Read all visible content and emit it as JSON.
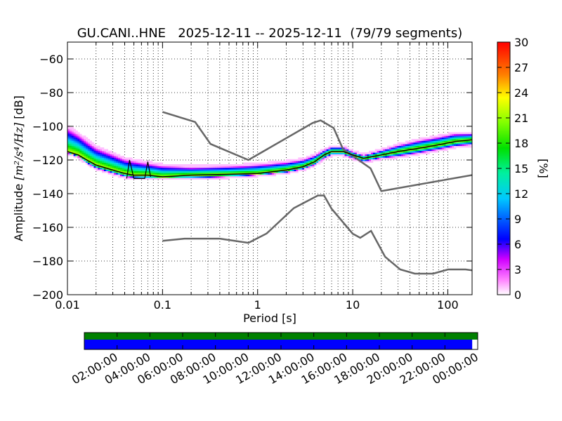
{
  "title": "GU.CANI..HNE   2025-12-11 -- 2025-12-11  (79/79 segments)",
  "chart_data": {
    "type": "heatmap",
    "title": "GU.CANI..HNE   2025-12-11 -- 2025-12-11  (79/79 segments)",
    "xlabel": "Period [s]",
    "ylabel_prefix": "Amplitude ",
    "ylabel_units": "[m²/s⁴/Hz]",
    "ylabel_suffix": " [dB]",
    "x_scale": "log",
    "xlim": [
      0.01,
      180
    ],
    "ylim": [
      -200,
      -50
    ],
    "grid": true,
    "x_ticks": [
      {
        "v": 0.01,
        "label": "0.01"
      },
      {
        "v": 0.1,
        "label": "0.1"
      },
      {
        "v": 1,
        "label": "1"
      },
      {
        "v": 10,
        "label": "10"
      },
      {
        "v": 100,
        "label": "100"
      }
    ],
    "y_ticks": [
      {
        "v": -60,
        "label": "−60"
      },
      {
        "v": -80,
        "label": "−80"
      },
      {
        "v": -100,
        "label": "−100"
      },
      {
        "v": -120,
        "label": "−120"
      },
      {
        "v": -140,
        "label": "−140"
      },
      {
        "v": -160,
        "label": "−160"
      },
      {
        "v": -180,
        "label": "−180"
      },
      {
        "v": -200,
        "label": "−200"
      }
    ],
    "colorbar": {
      "label": "[%]",
      "min": 0,
      "max": 30,
      "ticks": [
        "0",
        "3",
        "6",
        "9",
        "12",
        "15",
        "18",
        "21",
        "24",
        "27",
        "30"
      ]
    },
    "noise_models": {
      "high": [
        [
          0.1,
          -91.5
        ],
        [
          0.22,
          -97.4
        ],
        [
          0.32,
          -110.5
        ],
        [
          0.8,
          -120.0
        ],
        [
          3.8,
          -98.0
        ],
        [
          4.6,
          -96.5
        ],
        [
          6.3,
          -101.0
        ],
        [
          7.9,
          -113.5
        ],
        [
          15.4,
          -125.0
        ],
        [
          20.0,
          -138.5
        ],
        [
          354.8,
          -126.0
        ]
      ],
      "low": [
        [
          0.1,
          -168.0
        ],
        [
          0.17,
          -166.7
        ],
        [
          0.4,
          -166.7
        ],
        [
          0.8,
          -169.2
        ],
        [
          1.24,
          -163.7
        ],
        [
          2.4,
          -148.6
        ],
        [
          4.3,
          -141.1
        ],
        [
          5.0,
          -141.1
        ],
        [
          6.0,
          -149.0
        ],
        [
          10.0,
          -163.8
        ],
        [
          12.0,
          -166.2
        ],
        [
          15.6,
          -162.1
        ],
        [
          21.9,
          -177.5
        ],
        [
          31.6,
          -185.0
        ],
        [
          45.0,
          -187.5
        ],
        [
          70.0,
          -187.5
        ],
        [
          101.0,
          -185.0
        ],
        [
          154.0,
          -185.0
        ],
        [
          328.0,
          -187.5
        ]
      ]
    },
    "series": [
      {
        "name": "mode",
        "points": [
          [
            0.01,
            -115
          ],
          [
            0.013,
            -117
          ],
          [
            0.016,
            -120
          ],
          [
            0.02,
            -123
          ],
          [
            0.03,
            -126
          ],
          [
            0.04,
            -128
          ],
          [
            0.05,
            -129
          ],
          [
            0.07,
            -129
          ],
          [
            0.1,
            -130
          ],
          [
            0.2,
            -129
          ],
          [
            0.5,
            -128.5
          ],
          [
            1.0,
            -128
          ],
          [
            2.0,
            -126
          ],
          [
            3.0,
            -124
          ],
          [
            4.0,
            -121
          ],
          [
            5.0,
            -117
          ],
          [
            6.0,
            -115
          ],
          [
            8.0,
            -115
          ],
          [
            10.0,
            -117
          ],
          [
            13.0,
            -119
          ],
          [
            20.0,
            -117
          ],
          [
            30.0,
            -115
          ],
          [
            50.0,
            -113
          ],
          [
            80.0,
            -111
          ],
          [
            120.0,
            -109
          ],
          [
            180.0,
            -108
          ]
        ]
      },
      {
        "name": "min",
        "points": [
          [
            0.01,
            -116
          ],
          [
            0.013,
            -118
          ],
          [
            0.016,
            -122
          ],
          [
            0.02,
            -125
          ],
          [
            0.03,
            -128
          ],
          [
            0.04,
            -130
          ],
          [
            0.06,
            -131
          ],
          [
            0.1,
            -131
          ],
          [
            0.2,
            -131
          ],
          [
            0.5,
            -130
          ],
          [
            1.0,
            -129
          ],
          [
            2.0,
            -127.5
          ],
          [
            3.0,
            -125.5
          ],
          [
            4.0,
            -123
          ],
          [
            5.0,
            -119
          ],
          [
            6.0,
            -117
          ],
          [
            8.0,
            -117
          ],
          [
            10.0,
            -119
          ],
          [
            13.0,
            -121
          ],
          [
            20.0,
            -119
          ],
          [
            30.0,
            -118
          ],
          [
            50.0,
            -116
          ],
          [
            80.0,
            -114
          ],
          [
            120.0,
            -112
          ],
          [
            180.0,
            -111
          ]
        ]
      },
      {
        "name": "max",
        "points": [
          [
            0.01,
            -100
          ],
          [
            0.013,
            -104
          ],
          [
            0.016,
            -108
          ],
          [
            0.02,
            -112
          ],
          [
            0.03,
            -116
          ],
          [
            0.04,
            -119
          ],
          [
            0.06,
            -121
          ],
          [
            0.1,
            -123
          ],
          [
            0.2,
            -124
          ],
          [
            0.5,
            -123.5
          ],
          [
            1.0,
            -122.5
          ],
          [
            2.0,
            -121
          ],
          [
            3.0,
            -119.5
          ],
          [
            4.0,
            -117
          ],
          [
            5.0,
            -114
          ],
          [
            6.0,
            -112
          ],
          [
            8.0,
            -112
          ],
          [
            10.0,
            -115
          ],
          [
            13.0,
            -117
          ],
          [
            20.0,
            -114
          ],
          [
            30.0,
            -111
          ],
          [
            50.0,
            -108
          ],
          [
            80.0,
            -106
          ],
          [
            120.0,
            -104
          ],
          [
            180.0,
            -104
          ]
        ]
      }
    ],
    "spikes": [
      [
        0.042,
        -131
      ],
      [
        0.045,
        -120
      ],
      [
        0.05,
        -131
      ],
      [
        0.065,
        -131
      ],
      [
        0.07,
        -121
      ],
      [
        0.075,
        -130
      ]
    ]
  },
  "coverage": {
    "ticks": [
      "02:00:00",
      "04:00:00",
      "06:00:00",
      "08:00:00",
      "10:00:00",
      "12:00:00",
      "14:00:00",
      "16:00:00",
      "18:00:00",
      "20:00:00",
      "22:00:00",
      "00:00:00"
    ],
    "data_fraction": 0.986,
    "colors": {
      "processed": "#008000",
      "data": "#0000ff"
    }
  }
}
